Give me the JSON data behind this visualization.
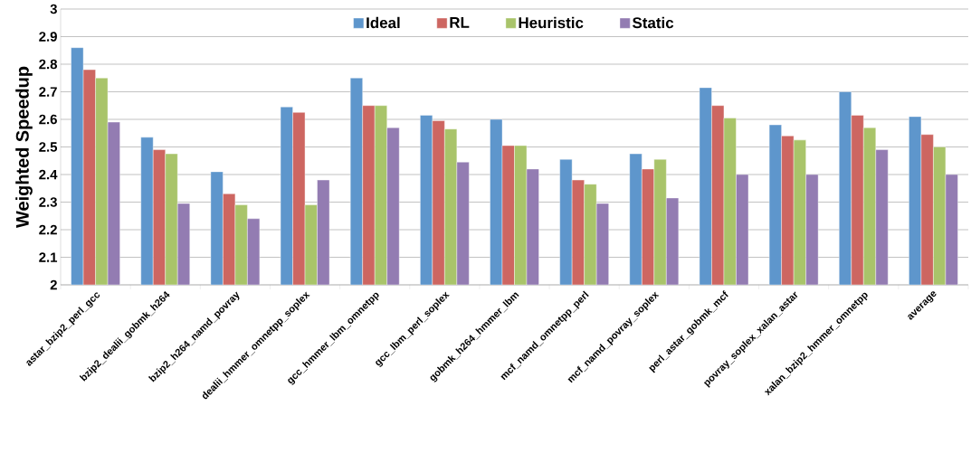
{
  "chart_data": {
    "type": "bar",
    "ylabel": "Weighted Speedup",
    "categories": [
      "astar_bzip2_perl_gcc",
      "bzip2_dealii_gobmk_h264",
      "bzip2_h264_namd_povray",
      "dealii_hmmer_omnetpp_soplex",
      "gcc_hmmer_lbm_omnetpp",
      "gcc_lbm_perl_soplex",
      "gobmk_h264_hmmer_lbm",
      "mcf_namd_omnetpp_perl",
      "mcf_namd_povray_soplex",
      "perl_astar_gobmk_mcf",
      "povray_soplex_xalan_astar",
      "xalan_bzip2_hmmer_omnetpp",
      "average"
    ],
    "series": [
      {
        "name": "Ideal",
        "color": "#5e96cc",
        "values": [
          2.86,
          2.535,
          2.41,
          2.645,
          2.75,
          2.615,
          2.6,
          2.455,
          2.475,
          2.715,
          2.58,
          2.7,
          2.61
        ]
      },
      {
        "name": "RL",
        "color": "#cd6661",
        "values": [
          2.78,
          2.49,
          2.33,
          2.625,
          2.65,
          2.595,
          2.505,
          2.38,
          2.42,
          2.65,
          2.54,
          2.615,
          2.545
        ]
      },
      {
        "name": "Heuristic",
        "color": "#a9c46a",
        "values": [
          2.75,
          2.475,
          2.29,
          2.29,
          2.65,
          2.565,
          2.505,
          2.365,
          2.455,
          2.605,
          2.525,
          2.57,
          2.5
        ]
      },
      {
        "name": "Static",
        "color": "#937cb2",
        "values": [
          2.59,
          2.295,
          2.24,
          2.38,
          2.57,
          2.445,
          2.42,
          2.295,
          2.315,
          2.4,
          2.4,
          2.49,
          2.4
        ]
      }
    ],
    "ylim": [
      2,
      3
    ],
    "yticks": [
      2,
      2.1,
      2.2,
      2.3,
      2.4,
      2.5,
      2.6,
      2.7,
      2.8,
      2.9,
      3
    ],
    "grid": "y",
    "legend": "top"
  }
}
